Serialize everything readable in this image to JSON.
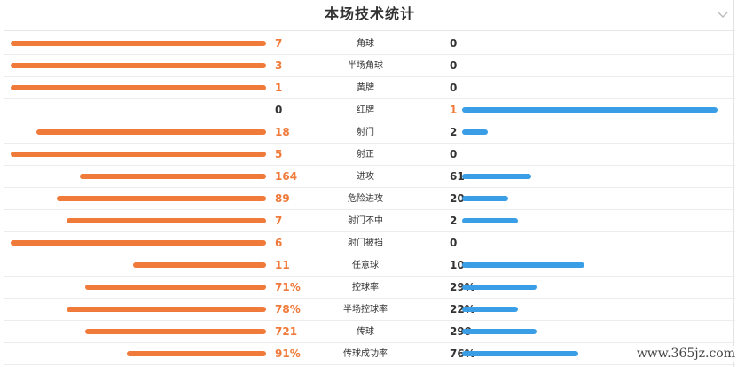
{
  "title": "本场技术统计",
  "colors": {
    "home": "#f07a3a",
    "away": "#3a9ee6"
  },
  "stats": [
    {
      "label": "角球",
      "home": 7,
      "away": 0,
      "home_display": "7",
      "away_display": "0",
      "home_share": 1.0,
      "away_share": 0.0
    },
    {
      "label": "半场角球",
      "home": 3,
      "away": 0,
      "home_display": "3",
      "away_display": "0",
      "home_share": 1.0,
      "away_share": 0.0
    },
    {
      "label": "黄牌",
      "home": 1,
      "away": 0,
      "home_display": "1",
      "away_display": "0",
      "home_share": 1.0,
      "away_share": 0.0
    },
    {
      "label": "红牌",
      "home": 0,
      "away": 1,
      "home_display": "0",
      "away_display": "1",
      "home_share": 0.0,
      "away_share": 1.0
    },
    {
      "label": "射门",
      "home": 18,
      "away": 2,
      "home_display": "18",
      "away_display": "2",
      "home_share": 0.9,
      "away_share": 0.1
    },
    {
      "label": "射正",
      "home": 5,
      "away": 0,
      "home_display": "5",
      "away_display": "0",
      "home_share": 1.0,
      "away_share": 0.0
    },
    {
      "label": "进攻",
      "home": 164,
      "away": 61,
      "home_display": "164",
      "away_display": "61",
      "home_share": 0.73,
      "away_share": 0.27
    },
    {
      "label": "危险进攻",
      "home": 89,
      "away": 20,
      "home_display": "89",
      "away_display": "20",
      "home_share": 0.82,
      "away_share": 0.18
    },
    {
      "label": "射门不中",
      "home": 7,
      "away": 2,
      "home_display": "7",
      "away_display": "2",
      "home_share": 0.78,
      "away_share": 0.22
    },
    {
      "label": "射门被挡",
      "home": 6,
      "away": 0,
      "home_display": "6",
      "away_display": "0",
      "home_share": 1.0,
      "away_share": 0.0
    },
    {
      "label": "任意球",
      "home": 11,
      "away": 10,
      "home_display": "11",
      "away_display": "10",
      "home_share": 0.52,
      "away_share": 0.48
    },
    {
      "label": "控球率",
      "home": 71,
      "away": 29,
      "home_display": "71%",
      "away_display": "29%",
      "home_share": 0.71,
      "away_share": 0.29
    },
    {
      "label": "半场控球率",
      "home": 78,
      "away": 22,
      "home_display": "78%",
      "away_display": "22%",
      "home_share": 0.78,
      "away_share": 0.22
    },
    {
      "label": "传球",
      "home": 721,
      "away": 299,
      "home_display": "721",
      "away_display": "299",
      "home_share": 0.71,
      "away_share": 0.29
    },
    {
      "label": "传球成功率",
      "home": 91,
      "away": 76,
      "home_display": "91%",
      "away_display": "76%",
      "home_share": 0.545,
      "away_share": 0.455
    }
  ],
  "watermark": "www.365jz.com",
  "icons": {
    "collapse": "chevron-down-icon"
  }
}
